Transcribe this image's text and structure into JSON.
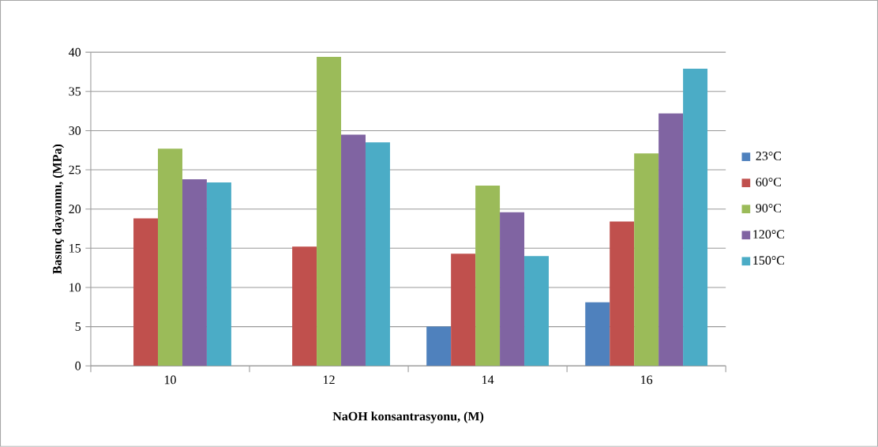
{
  "chart_data": {
    "type": "bar",
    "xlabel": "NaOH konsantrasyonu, (M)",
    "ylabel": "Basınç dayanımı, (MPa)",
    "categories": [
      "10",
      "12",
      "14",
      "16"
    ],
    "series": [
      {
        "name": "23°C",
        "color": "#4f81bd",
        "values": [
          null,
          null,
          5.0,
          8.1
        ]
      },
      {
        "name": "60°C",
        "color": "#c0504d",
        "values": [
          18.8,
          15.2,
          14.3,
          18.4
        ]
      },
      {
        "name": "90°C",
        "color": "#9bbb59",
        "values": [
          27.7,
          39.4,
          23.0,
          27.1
        ]
      },
      {
        "name": "120°C",
        "color": "#8064a2",
        "values": [
          23.8,
          29.5,
          19.6,
          32.2
        ]
      },
      {
        "name": "150°C",
        "color": "#4bacc6",
        "values": [
          23.4,
          28.5,
          14.0,
          37.9
        ]
      }
    ],
    "ylim": [
      0,
      40
    ],
    "yticks": [
      0,
      5,
      10,
      15,
      20,
      25,
      30,
      35,
      40
    ],
    "grid": "y",
    "legend": "right"
  }
}
